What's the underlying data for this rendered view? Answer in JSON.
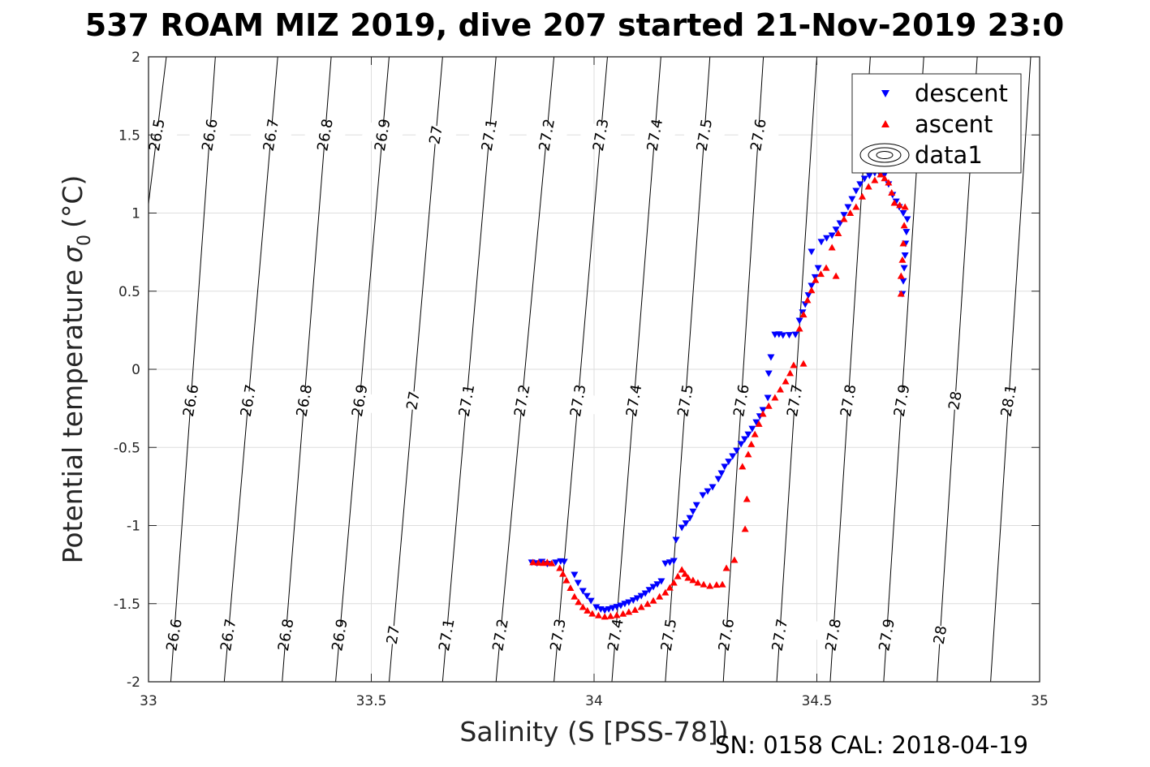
{
  "chart_data": {
    "type": "scatter",
    "title": "537 ROAM MIZ 2019, dive 207 started 21-Nov-2019 23:0",
    "xlabel": "Salinity (S [PSS-78])",
    "ylabel": "Potential temperature",
    "ylabel_symbol": "σ",
    "ylabel_subscript": "0",
    "ylabel_unit": "(°C)",
    "footer": "SN: 0158  CAL: 2018-04-19",
    "xlim": [
      33,
      35
    ],
    "ylim": [
      -2,
      2
    ],
    "grid": true,
    "x_ticks": [
      33,
      33.5,
      34,
      34.5,
      35
    ],
    "x_tick_labels": [
      "33",
      "33.5",
      "34",
      "34.5",
      "35"
    ],
    "y_ticks": [
      2,
      1.5,
      1,
      0.5,
      0,
      -0.5,
      -1,
      -1.5,
      -2
    ],
    "y_tick_labels": [
      "2",
      "1.5",
      "1",
      "0.5",
      "0",
      "-0.5",
      "-1",
      "-1.5",
      "-2"
    ],
    "legend": {
      "location": "top-right",
      "entries": [
        {
          "label": "descent",
          "marker": "triangle-down",
          "color": "#0000ff"
        },
        {
          "label": "ascent",
          "marker": "triangle-up",
          "color": "#ff0000"
        },
        {
          "label": "data1",
          "marker": "contour",
          "color": "#000000"
        }
      ]
    },
    "density_contours": {
      "levels": [
        "26.5",
        "26.6",
        "26.7",
        "26.8",
        "26.9",
        "27",
        "27.1",
        "27.2",
        "27.3",
        "27.4",
        "27.5",
        "27.6",
        "27.7",
        "27.8",
        "27.9",
        "28",
        "28.1"
      ],
      "s_at_t_minus2": [
        32.87,
        33.05,
        33.17,
        33.3,
        33.42,
        33.54,
        33.66,
        33.78,
        33.91,
        34.04,
        34.16,
        34.29,
        34.41,
        34.53,
        34.65,
        34.77,
        34.89
      ],
      "s_at_t_plus2": [
        33.04,
        33.15,
        33.29,
        33.41,
        33.54,
        33.66,
        33.78,
        33.91,
        34.03,
        34.15,
        34.26,
        34.38,
        34.5,
        34.62,
        34.74,
        34.86,
        34.98
      ],
      "labels_top_row": [
        "26.5",
        "26.6",
        "26.7",
        "26.8",
        "26.9",
        "27",
        "27.1",
        "27.2",
        "27.3",
        "27.4",
        "27.5",
        "27.6",
        "28"
      ],
      "labels_middle_row": [
        "26.5",
        "26.6",
        "26.7",
        "26.8",
        "26.9",
        "27",
        "27.1",
        "27.2",
        "27.3",
        "27.4",
        "27.5",
        "27.6",
        "27.7",
        "27.8",
        "27.9",
        "28",
        "28.1"
      ],
      "labels_bottom_row": [
        "26.6",
        "26.7",
        "26.8",
        "26.9",
        "27",
        "27.1",
        "27.2",
        "27.3",
        "27.4",
        "27.5",
        "27.6",
        "27.7",
        "27.8",
        "27.9",
        "28"
      ]
    },
    "series": [
      {
        "name": "descent",
        "color": "#0000ff",
        "marker": "triangle-down",
        "points": [
          [
            33.86,
            -1.236
          ],
          [
            33.872,
            -1.24
          ],
          [
            33.883,
            -1.231
          ],
          [
            33.895,
            -1.245
          ],
          [
            33.914,
            -1.236
          ],
          [
            33.925,
            -1.228
          ],
          [
            33.933,
            -1.231
          ],
          [
            33.956,
            -1.314
          ],
          [
            33.964,
            -1.366
          ],
          [
            33.975,
            -1.418
          ],
          [
            33.984,
            -1.45
          ],
          [
            33.993,
            -1.481
          ],
          [
            34.005,
            -1.522
          ],
          [
            34.015,
            -1.535
          ],
          [
            34.024,
            -1.543
          ],
          [
            34.033,
            -1.535
          ],
          [
            34.042,
            -1.527
          ],
          [
            34.051,
            -1.52
          ],
          [
            34.06,
            -1.512
          ],
          [
            34.069,
            -1.5
          ],
          [
            34.078,
            -1.491
          ],
          [
            34.088,
            -1.478
          ],
          [
            34.097,
            -1.465
          ],
          [
            34.106,
            -1.45
          ],
          [
            34.115,
            -1.434
          ],
          [
            34.124,
            -1.412
          ],
          [
            34.133,
            -1.392
          ],
          [
            34.142,
            -1.375
          ],
          [
            34.151,
            -1.356
          ],
          [
            34.16,
            -1.242
          ],
          [
            34.17,
            -1.235
          ],
          [
            34.179,
            -1.226
          ],
          [
            34.184,
            -1.091
          ],
          [
            34.197,
            -1.013
          ],
          [
            34.206,
            -0.985
          ],
          [
            34.215,
            -0.951
          ],
          [
            34.222,
            -0.91
          ],
          [
            34.23,
            -0.868
          ],
          [
            34.244,
            -0.805
          ],
          [
            34.255,
            -0.78
          ],
          [
            34.266,
            -0.753
          ],
          [
            34.279,
            -0.701
          ],
          [
            34.286,
            -0.665
          ],
          [
            34.293,
            -0.623
          ],
          [
            34.302,
            -0.59
          ],
          [
            34.311,
            -0.556
          ],
          [
            34.32,
            -0.52
          ],
          [
            34.33,
            -0.478
          ],
          [
            34.338,
            -0.447
          ],
          [
            34.346,
            -0.416
          ],
          [
            34.355,
            -0.38
          ],
          [
            34.364,
            -0.338
          ],
          [
            34.372,
            -0.3
          ],
          [
            34.379,
            -0.26
          ],
          [
            34.39,
            -0.182
          ],
          [
            34.392,
            -0.026
          ],
          [
            34.397,
            0.078
          ],
          [
            34.406,
            0.223
          ],
          [
            34.415,
            0.225
          ],
          [
            34.424,
            0.218
          ],
          [
            34.438,
            0.22
          ],
          [
            34.452,
            0.223
          ],
          [
            34.461,
            0.312
          ],
          [
            34.468,
            0.365
          ],
          [
            34.474,
            0.416
          ],
          [
            34.481,
            0.475
          ],
          [
            34.488,
            0.535
          ],
          [
            34.496,
            0.59
          ],
          [
            34.503,
            0.649
          ],
          [
            34.488,
            0.753
          ],
          [
            34.51,
            0.816
          ],
          [
            34.522,
            0.84
          ],
          [
            34.534,
            0.857
          ],
          [
            34.543,
            0.895
          ],
          [
            34.552,
            0.935
          ],
          [
            34.561,
            0.988
          ],
          [
            34.57,
            1.039
          ],
          [
            34.579,
            1.09
          ],
          [
            34.588,
            1.143
          ],
          [
            34.597,
            1.185
          ],
          [
            34.607,
            1.221
          ],
          [
            34.618,
            1.24
          ],
          [
            34.63,
            1.257
          ],
          [
            34.641,
            1.255
          ],
          [
            34.652,
            1.247
          ],
          [
            34.661,
            1.185
          ],
          [
            34.67,
            1.117
          ],
          [
            34.678,
            1.075
          ],
          [
            34.685,
            1.039
          ],
          [
            34.694,
            1.0
          ],
          [
            34.703,
            0.961
          ],
          [
            34.701,
            0.88
          ],
          [
            34.699,
            0.805
          ],
          [
            34.698,
            0.73
          ],
          [
            34.696,
            0.649
          ],
          [
            34.694,
            0.565
          ],
          [
            34.692,
            0.483
          ]
        ]
      },
      {
        "name": "ascent",
        "color": "#ff0000",
        "marker": "triangle-up",
        "points": [
          [
            33.863,
            -1.236
          ],
          [
            33.875,
            -1.238
          ],
          [
            33.886,
            -1.24
          ],
          [
            33.895,
            -1.236
          ],
          [
            33.905,
            -1.242
          ],
          [
            33.923,
            -1.273
          ],
          [
            33.93,
            -1.31
          ],
          [
            33.938,
            -1.351
          ],
          [
            33.947,
            -1.4
          ],
          [
            33.956,
            -1.455
          ],
          [
            33.965,
            -1.49
          ],
          [
            33.975,
            -1.522
          ],
          [
            33.985,
            -1.545
          ],
          [
            33.996,
            -1.564
          ],
          [
            34.01,
            -1.575
          ],
          [
            34.024,
            -1.584
          ],
          [
            34.037,
            -1.58
          ],
          [
            34.051,
            -1.574
          ],
          [
            34.065,
            -1.565
          ],
          [
            34.078,
            -1.553
          ],
          [
            34.092,
            -1.54
          ],
          [
            34.106,
            -1.522
          ],
          [
            34.12,
            -1.502
          ],
          [
            34.133,
            -1.481
          ],
          [
            34.147,
            -1.455
          ],
          [
            34.16,
            -1.429
          ],
          [
            34.17,
            -1.398
          ],
          [
            34.179,
            -1.366
          ],
          [
            34.188,
            -1.325
          ],
          [
            34.197,
            -1.283
          ],
          [
            34.204,
            -1.31
          ],
          [
            34.211,
            -1.335
          ],
          [
            34.222,
            -1.35
          ],
          [
            34.233,
            -1.366
          ],
          [
            34.246,
            -1.377
          ],
          [
            34.26,
            -1.387
          ],
          [
            34.275,
            -1.38
          ],
          [
            34.288,
            -1.377
          ],
          [
            34.297,
            -1.273
          ],
          [
            34.315,
            -1.221
          ],
          [
            34.339,
            -1.023
          ],
          [
            34.343,
            -0.831
          ],
          [
            34.333,
            -0.623
          ],
          [
            34.346,
            -0.545
          ],
          [
            34.353,
            -0.48
          ],
          [
            34.361,
            -0.416
          ],
          [
            34.37,
            -0.35
          ],
          [
            34.379,
            -0.286
          ],
          [
            34.392,
            -0.235
          ],
          [
            34.406,
            -0.182
          ],
          [
            34.418,
            -0.13
          ],
          [
            34.43,
            -0.078
          ],
          [
            34.44,
            -0.025
          ],
          [
            34.448,
            0.026
          ],
          [
            34.47,
            0.036
          ],
          [
            34.461,
            0.26
          ],
          [
            34.47,
            0.35
          ],
          [
            34.479,
            0.442
          ],
          [
            34.488,
            0.505
          ],
          [
            34.497,
            0.571
          ],
          [
            34.509,
            0.61
          ],
          [
            34.521,
            0.649
          ],
          [
            34.543,
            0.597
          ],
          [
            34.534,
            0.779
          ],
          [
            34.548,
            0.87
          ],
          [
            34.561,
            0.961
          ],
          [
            34.575,
            1.0
          ],
          [
            34.588,
            1.039
          ],
          [
            34.602,
            1.105
          ],
          [
            34.616,
            1.169
          ],
          [
            34.63,
            1.21
          ],
          [
            34.643,
            1.247
          ],
          [
            34.652,
            1.222
          ],
          [
            34.661,
            1.195
          ],
          [
            34.668,
            1.13
          ],
          [
            34.674,
            1.065
          ],
          [
            34.686,
            1.05
          ],
          [
            34.698,
            1.039
          ],
          [
            34.696,
            0.92
          ],
          [
            34.694,
            0.805
          ],
          [
            34.692,
            0.7
          ],
          [
            34.689,
            0.597
          ],
          [
            34.689,
            0.483
          ]
        ]
      }
    ]
  }
}
